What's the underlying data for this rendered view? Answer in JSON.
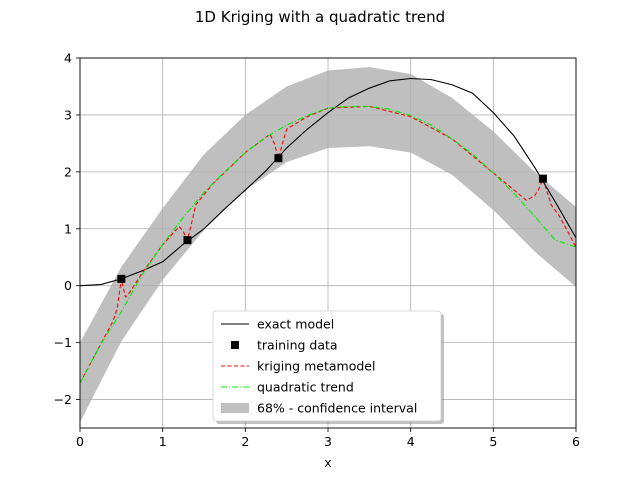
{
  "chart_data": {
    "type": "line",
    "title": "1D Kriging with a quadratic trend",
    "xlabel": "x",
    "ylabel": "",
    "xlim": [
      0,
      6
    ],
    "ylim": [
      -2.5,
      4
    ],
    "xticks": [
      0,
      1,
      2,
      3,
      4,
      5,
      6
    ],
    "yticks": [
      -2,
      -1,
      0,
      1,
      2,
      3,
      4
    ],
    "xtick_labels": [
      "0",
      "1",
      "2",
      "3",
      "4",
      "5",
      "6"
    ],
    "ytick_labels": [
      "−2",
      "−1",
      "0",
      "1",
      "2",
      "3",
      "4"
    ],
    "grid": true,
    "legend_position": "lower center",
    "series": [
      {
        "name": "exact model",
        "kind": "line",
        "color": "#000000",
        "x": [
          0,
          0.25,
          0.5,
          0.75,
          1.0,
          1.25,
          1.5,
          1.75,
          2.0,
          2.25,
          2.5,
          2.75,
          3.0,
          3.25,
          3.5,
          3.75,
          4.0,
          4.25,
          4.5,
          4.75,
          5.0,
          5.25,
          5.5,
          5.75,
          6.0
        ],
        "y": [
          0,
          0.02,
          0.12,
          0.26,
          0.42,
          0.73,
          1.0,
          1.35,
          1.68,
          2.02,
          2.42,
          2.75,
          3.04,
          3.3,
          3.47,
          3.6,
          3.64,
          3.62,
          3.53,
          3.38,
          3.04,
          2.63,
          2.08,
          1.47,
          0.84
        ]
      },
      {
        "name": "training data",
        "kind": "marker",
        "color": "#000000",
        "x": [
          0.5,
          1.3,
          2.4,
          5.6
        ],
        "y": [
          0.12,
          0.8,
          2.24,
          1.88
        ]
      },
      {
        "name": "kriging metamodel",
        "kind": "line",
        "color": "#ff0000",
        "x": [
          0,
          0.25,
          0.4,
          0.45,
          0.5,
          0.55,
          0.6,
          0.75,
          1.0,
          1.2,
          1.25,
          1.3,
          1.35,
          1.4,
          1.6,
          2.0,
          2.3,
          2.35,
          2.4,
          2.45,
          2.5,
          2.75,
          3.0,
          3.5,
          4.0,
          4.5,
          5.0,
          5.4,
          5.5,
          5.55,
          5.6,
          5.65,
          5.7,
          5.8,
          6.0
        ],
        "y": [
          -1.71,
          -1.03,
          -0.62,
          -0.4,
          0.12,
          -0.2,
          -0.12,
          0.22,
          0.72,
          1.04,
          0.95,
          0.8,
          1.1,
          1.42,
          1.78,
          2.34,
          2.66,
          2.5,
          2.24,
          2.5,
          2.75,
          2.97,
          3.12,
          3.15,
          2.97,
          2.58,
          1.98,
          1.5,
          1.58,
          1.7,
          1.88,
          1.65,
          1.42,
          1.22,
          0.68
        ]
      },
      {
        "name": "quadratic trend",
        "kind": "line",
        "color": "#00ee00",
        "x": [
          0,
          0.25,
          0.5,
          0.75,
          1.0,
          1.25,
          1.5,
          1.75,
          2.0,
          2.25,
          2.5,
          2.75,
          3.0,
          3.25,
          3.5,
          3.75,
          4.0,
          4.25,
          4.5,
          4.75,
          5.0,
          5.25,
          5.5,
          5.75,
          6.0
        ],
        "y": [
          -1.71,
          -1.03,
          -0.46,
          0.19,
          0.73,
          1.2,
          1.64,
          2.0,
          2.34,
          2.61,
          2.82,
          2.99,
          3.12,
          3.15,
          3.15,
          3.1,
          2.99,
          2.82,
          2.58,
          2.31,
          1.98,
          1.62,
          1.22,
          0.8,
          0.68
        ]
      },
      {
        "name": "68% - confidence interval",
        "kind": "band",
        "color": "#bfbfbf",
        "x": [
          0,
          0.5,
          1.0,
          1.5,
          2.0,
          2.5,
          3.0,
          3.5,
          4.0,
          4.5,
          5.0,
          5.5,
          6.0
        ],
        "lower": [
          -2.4,
          -0.98,
          0.1,
          0.98,
          1.68,
          2.17,
          2.42,
          2.45,
          2.34,
          1.95,
          1.33,
          0.6,
          -0.02
        ],
        "upper": [
          -1.0,
          0.33,
          1.36,
          2.31,
          3.0,
          3.5,
          3.78,
          3.84,
          3.72,
          3.3,
          2.71,
          2.0,
          1.38
        ]
      }
    ]
  }
}
